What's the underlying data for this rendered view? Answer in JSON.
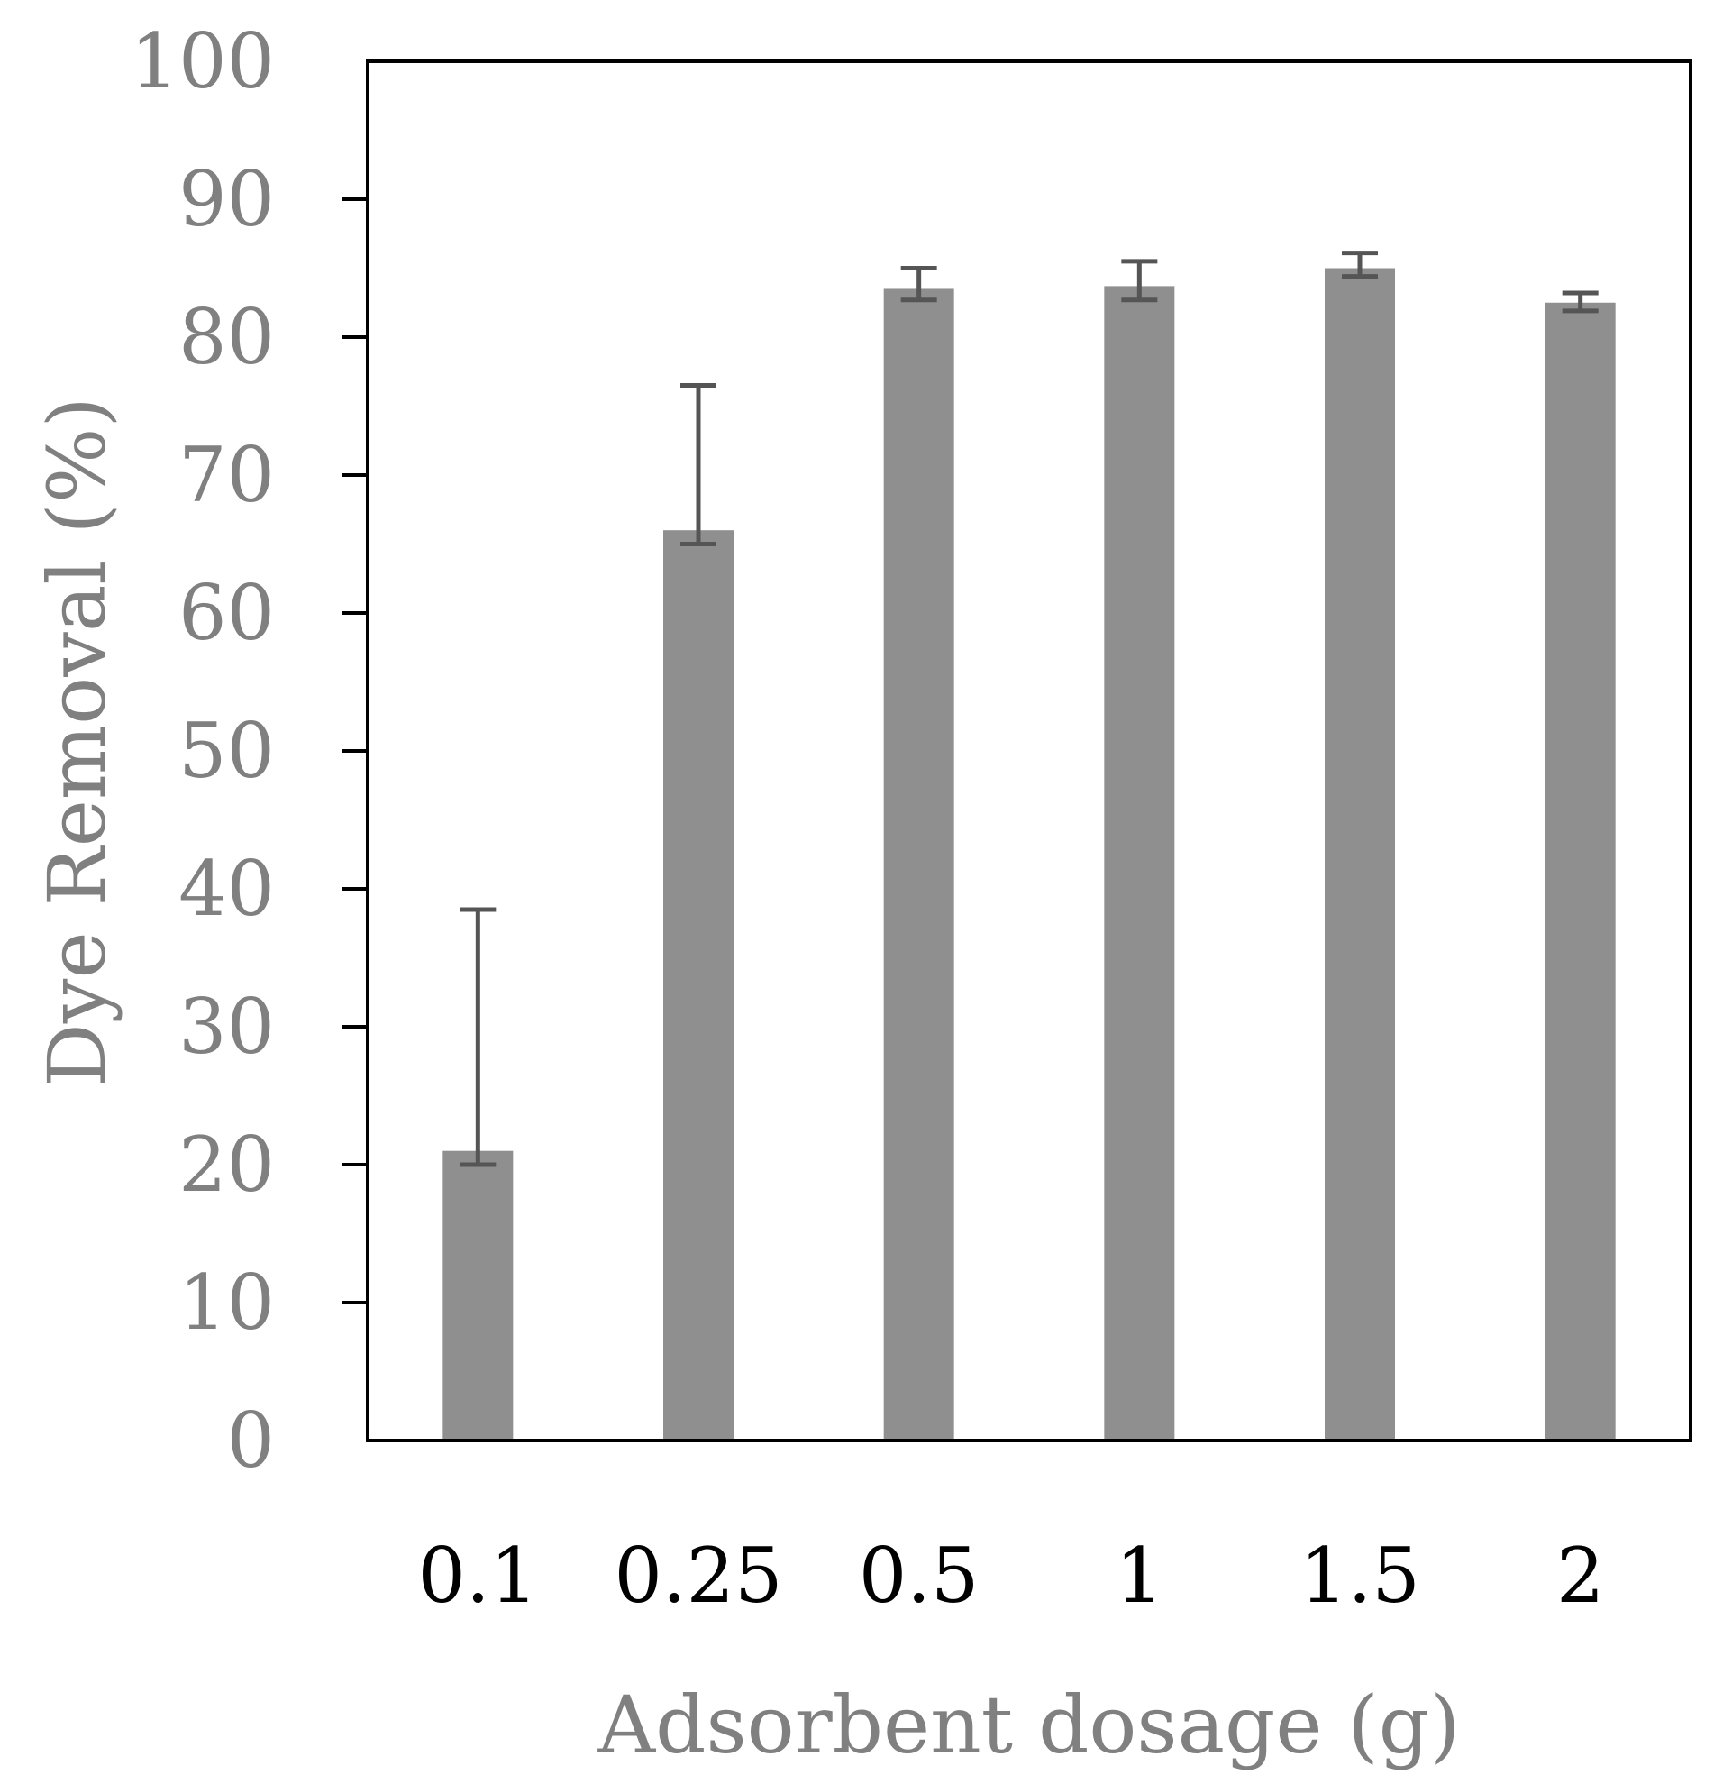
{
  "chart_data": {
    "type": "bar",
    "title": "",
    "xlabel": "Adsorbent dosage (g)",
    "ylabel": "Dye Removal (%)",
    "categories": [
      "0.1",
      "0.25",
      "0.5",
      "1",
      "1.5",
      "2"
    ],
    "values": [
      21.0,
      66.0,
      83.5,
      83.7,
      85.0,
      82.5
    ],
    "error_plus": [
      17.5,
      10.5,
      1.5,
      1.8,
      1.1,
      0.7
    ],
    "error_minus": [
      1.0,
      1.0,
      0.8,
      1.0,
      0.6,
      0.6
    ],
    "ylim": [
      0,
      100
    ],
    "yticks": [
      0,
      10,
      20,
      30,
      40,
      50,
      60,
      70,
      80,
      90,
      100
    ],
    "grid": false,
    "legend": "none",
    "colors": {
      "bar": "#8f8f8f",
      "errorbar": "#555555",
      "frame": "#000000",
      "ytick_text": "#808080",
      "xtick_text": "#000000",
      "axis_title": "#808080"
    }
  }
}
